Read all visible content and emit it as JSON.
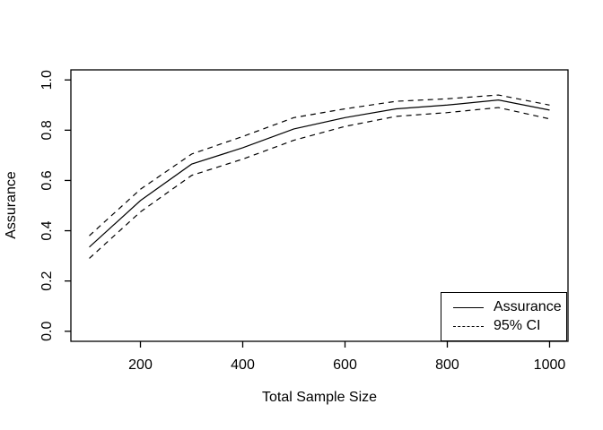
{
  "figure": {
    "background": "#ffffff",
    "foreground": "#000000"
  },
  "chart_data": {
    "type": "line",
    "title": "",
    "xlabel": "Total Sample Size",
    "ylabel": "Assurance",
    "x": [
      100,
      200,
      300,
      400,
      500,
      600,
      700,
      800,
      900,
      1000
    ],
    "series": [
      {
        "name": "Assurance",
        "style": "solid",
        "values": [
          0.335,
          0.52,
          0.665,
          0.73,
          0.805,
          0.85,
          0.885,
          0.9,
          0.92,
          0.88
        ]
      },
      {
        "name": "95% CI upper",
        "style": "dashed",
        "values": [
          0.38,
          0.565,
          0.705,
          0.775,
          0.85,
          0.885,
          0.915,
          0.925,
          0.94,
          0.9
        ]
      },
      {
        "name": "95% CI lower",
        "style": "dashed",
        "values": [
          0.29,
          0.475,
          0.62,
          0.685,
          0.76,
          0.815,
          0.855,
          0.87,
          0.89,
          0.845
        ]
      }
    ],
    "xticks": [
      "200",
      "400",
      "600",
      "800",
      "1000"
    ],
    "xtick_values": [
      200,
      400,
      600,
      800,
      1000
    ],
    "yticks": [
      "0.0",
      "0.2",
      "0.4",
      "0.6",
      "0.8",
      "1.0"
    ],
    "ytick_values": [
      0.0,
      0.2,
      0.4,
      0.6,
      0.8,
      1.0
    ],
    "xlim": [
      64,
      1036
    ],
    "ylim": [
      -0.04,
      1.04
    ],
    "grid": false,
    "legend": {
      "position": "bottomright",
      "entries": [
        {
          "label": "Assurance",
          "lty": "solid"
        },
        {
          "label": "95% CI",
          "lty": "dashed"
        }
      ]
    },
    "colors": {
      "line": "#000000",
      "background": "#ffffff"
    }
  }
}
